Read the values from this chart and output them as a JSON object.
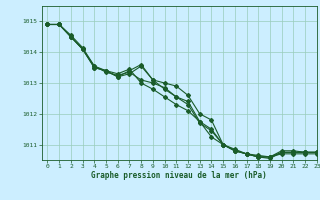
{
  "title": "Graphe pression niveau de la mer (hPa)",
  "background_color": "#cceeff",
  "grid_color": "#99ccbb",
  "line_color": "#1a5c2a",
  "xlim": [
    -0.5,
    23
  ],
  "ylim": [
    1010.5,
    1015.5
  ],
  "yticks": [
    1011,
    1012,
    1013,
    1014,
    1015
  ],
  "xticks": [
    0,
    1,
    2,
    3,
    4,
    5,
    6,
    7,
    8,
    9,
    10,
    11,
    12,
    13,
    14,
    15,
    16,
    17,
    18,
    19,
    20,
    21,
    22,
    23
  ],
  "series": [
    [
      1014.9,
      1014.9,
      1014.5,
      1014.1,
      1013.5,
      1013.4,
      1013.2,
      1013.4,
      1013.6,
      1013.1,
      1013.0,
      1012.9,
      1012.6,
      1012.0,
      1011.8,
      1011.0,
      1010.8,
      1010.7,
      1010.6,
      1010.6,
      1010.7,
      1010.7,
      1010.7,
      1010.7
    ],
    [
      1014.9,
      1014.9,
      1014.5,
      1014.1,
      1013.5,
      1013.4,
      1013.2,
      1013.3,
      1013.55,
      1013.1,
      1012.8,
      1012.55,
      1012.4,
      1011.75,
      1011.5,
      1011.0,
      1010.8,
      1010.7,
      1010.6,
      1010.6,
      1010.75,
      1010.75,
      1010.75,
      1010.75
    ],
    [
      1014.9,
      1014.9,
      1014.5,
      1014.1,
      1013.55,
      1013.35,
      1013.25,
      1013.35,
      1013.1,
      1013.0,
      1012.85,
      1012.55,
      1012.3,
      1011.7,
      1011.45,
      1011.0,
      1010.8,
      1010.7,
      1010.65,
      1010.6,
      1010.8,
      1010.8,
      1010.75,
      1010.75
    ],
    [
      1014.9,
      1014.9,
      1014.55,
      1014.15,
      1013.55,
      1013.4,
      1013.3,
      1013.45,
      1013.0,
      1012.8,
      1012.55,
      1012.3,
      1012.1,
      1011.75,
      1011.25,
      1011.0,
      1010.85,
      1010.7,
      1010.6,
      1010.55,
      1010.75,
      1010.75,
      1010.75,
      1010.75
    ]
  ]
}
